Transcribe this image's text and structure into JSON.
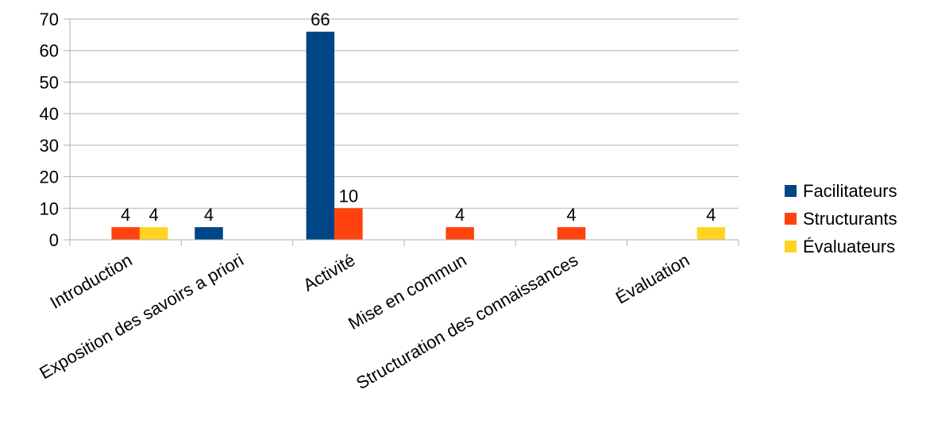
{
  "chart_data": {
    "type": "bar",
    "categories": [
      "Introduction",
      "Exposition des savoirs a priori",
      "Activité",
      "Mise en commun",
      "Structuration des connaissances",
      "Évaluation"
    ],
    "series": [
      {
        "name": "Facilitateurs",
        "values": [
          0,
          4,
          66,
          0,
          0,
          0
        ],
        "color": "#004586"
      },
      {
        "name": "Structurants",
        "values": [
          4,
          0,
          10,
          4,
          4,
          0
        ],
        "color": "#ff420e"
      },
      {
        "name": "Évaluateurs",
        "values": [
          4,
          0,
          0,
          0,
          0,
          4
        ],
        "color": "#ffd320"
      }
    ],
    "ylim": [
      0,
      70
    ],
    "yticks": [
      0,
      10,
      20,
      30,
      40,
      50,
      60,
      70
    ],
    "grid": true,
    "legend": "right",
    "data_labels": true,
    "title": "",
    "xlabel": "",
    "ylabel": ""
  }
}
